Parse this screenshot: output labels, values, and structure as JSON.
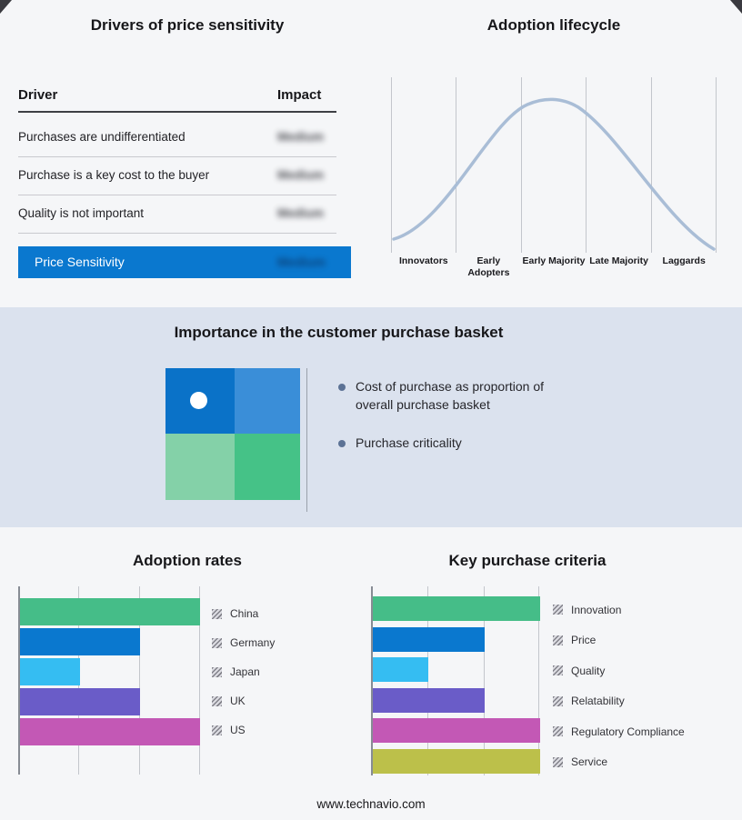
{
  "drivers": {
    "title": "Drivers of price sensitivity",
    "columns": {
      "driver": "Driver",
      "impact": "Impact"
    },
    "rows": [
      {
        "label": "Purchases are undifferentiated",
        "impact": "Medium"
      },
      {
        "label": "Purchase is a key cost to the buyer",
        "impact": "Medium"
      },
      {
        "label": "Quality is not important",
        "impact": "Medium"
      }
    ],
    "summary": {
      "label": "Price Sensitivity",
      "impact": "Medium",
      "accent_color": "#0a78cf"
    }
  },
  "lifecycle": {
    "title": "Adoption lifecycle",
    "stages": [
      "Innovators",
      "Early Adopters",
      "Early Majority",
      "Late Majority",
      "Laggards"
    ],
    "curve": "bell",
    "curve_color": "#a9bdd6"
  },
  "basket": {
    "title": "Importance in the customer purchase basket",
    "bullets": [
      "Cost of purchase as proportion of overall purchase basket",
      "Purchase criticality"
    ],
    "quadrant_colors": {
      "top_left": "#0a72c8",
      "top_right": "#3a8ed8",
      "bottom_left": "#84d1a8",
      "bottom_right": "#45c287"
    }
  },
  "chart_data": [
    {
      "type": "bar",
      "title": "Adoption rates",
      "orientation": "horizontal",
      "categories": [
        "China",
        "Germany",
        "Japan",
        "UK",
        "US"
      ],
      "values": [
        3,
        2,
        1,
        2,
        3
      ],
      "xlim": [
        0,
        3
      ],
      "grid": true,
      "legend_position": "right",
      "colors": [
        "#45bd88",
        "#0a78cf",
        "#35bdf2",
        "#6a5cc8",
        "#c358b5"
      ]
    },
    {
      "type": "bar",
      "title": "Key purchase criteria",
      "orientation": "horizontal",
      "categories": [
        "Innovation",
        "Price",
        "Quality",
        "Relatability",
        "Regulatory Compliance",
        "Service"
      ],
      "values": [
        3,
        2,
        1,
        2,
        3,
        3
      ],
      "xlim": [
        0,
        3
      ],
      "grid": true,
      "legend_position": "right",
      "colors": [
        "#45bd88",
        "#0a78cf",
        "#35bdf2",
        "#6a5cc8",
        "#c358b5",
        "#bcc04a"
      ]
    }
  ],
  "footer": {
    "link": "www.technavio.com"
  }
}
